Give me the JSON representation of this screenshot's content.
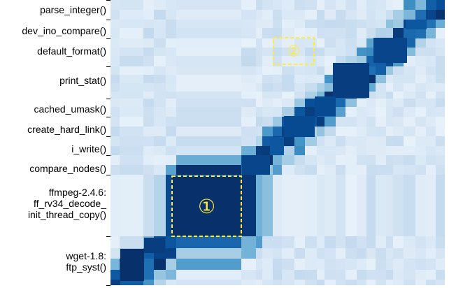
{
  "chart_data": {
    "type": "heatmap",
    "colormap": "Blues",
    "row_labels": [
      "parse_integer()",
      "dev_ino_compare()",
      "default_format()",
      "print_stat()",
      "cached_umask()",
      "create_hard_link()",
      "i_write()",
      "compare_nodes()",
      "ffmpeg-2.4.6:\nff_rv34_decode_\ninit_thread_copy()",
      "wget-1.8:\nftp_syst()"
    ],
    "annotations": [
      {
        "id": "highlight-1",
        "text": "①",
        "color": "#ffeb3b",
        "style": "dashed"
      },
      {
        "id": "highlight-2",
        "text": "②",
        "color": "#ffeb3b",
        "style": "dashed"
      }
    ],
    "diagonal_blocks": [
      "wget-1.8: ftp_syst()",
      "ffmpeg-2.4.6: ff_rv34_decode_init_thread_copy()",
      "compare_nodes()",
      "i_write()",
      "create_hard_link()",
      "cached_umask()",
      "print_stat()",
      "default_format()",
      "dev_ino_compare()",
      "parse_integer()"
    ]
  }
}
